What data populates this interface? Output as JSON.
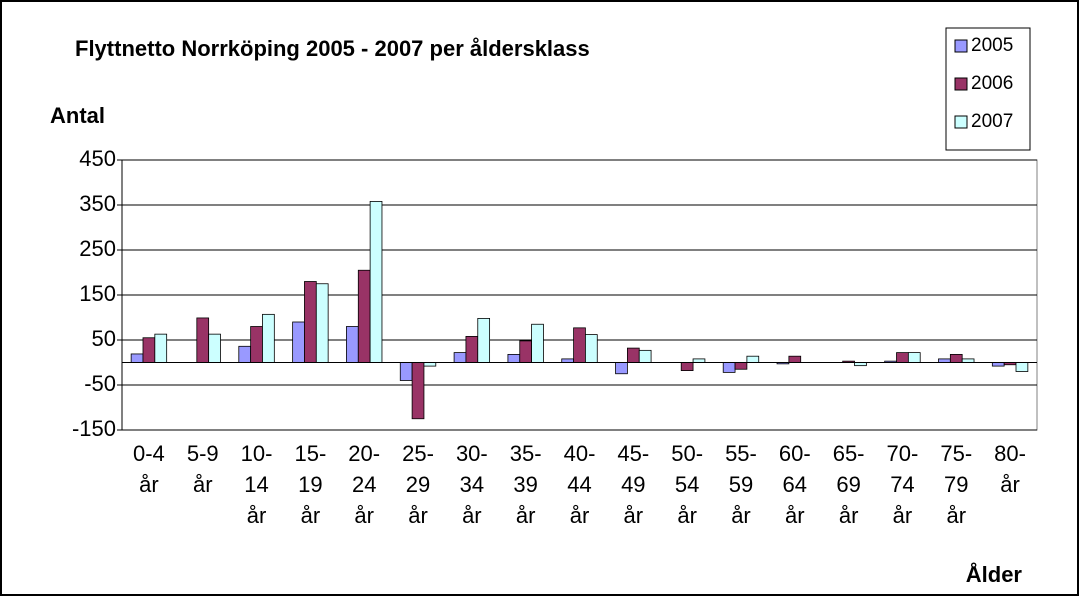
{
  "chart_data": {
    "type": "bar",
    "title": "Flyttnetto Norrköping 2005 - 2007 per åldersklass",
    "y_label": "Antal",
    "x_label": "Ålder",
    "categories": [
      "0-4 år",
      "5-9 år",
      "10-14 år",
      "15-19 år",
      "20-24 år",
      "25-29 år",
      "30-34 år",
      "35-39 år",
      "40-44 år",
      "45-49 år",
      "50-54 år",
      "55-59 år",
      "60-64 år",
      "65-69 år",
      "70-74 år",
      "75-79 år",
      "80- år"
    ],
    "series": [
      {
        "name": "2005",
        "color": "#9999ff",
        "values": [
          19,
          0,
          36,
          90,
          80,
          -40,
          22,
          18,
          8,
          -25,
          0,
          -22,
          -3,
          0,
          3,
          8,
          -8
        ]
      },
      {
        "name": "2006",
        "color": "#993366",
        "values": [
          55,
          99,
          80,
          180,
          205,
          -125,
          58,
          48,
          77,
          32,
          -18,
          -15,
          14,
          3,
          22,
          18,
          -5
        ]
      },
      {
        "name": "2007",
        "color": "#ccffff",
        "values": [
          63,
          63,
          107,
          175,
          358,
          -8,
          98,
          85,
          62,
          27,
          8,
          14,
          0,
          -7,
          22,
          8,
          -20
        ]
      }
    ],
    "ylim": [
      -150,
      450
    ],
    "yticks": [
      -150,
      -50,
      50,
      150,
      250,
      350,
      450
    ],
    "grid": true,
    "legend": "top-right"
  }
}
